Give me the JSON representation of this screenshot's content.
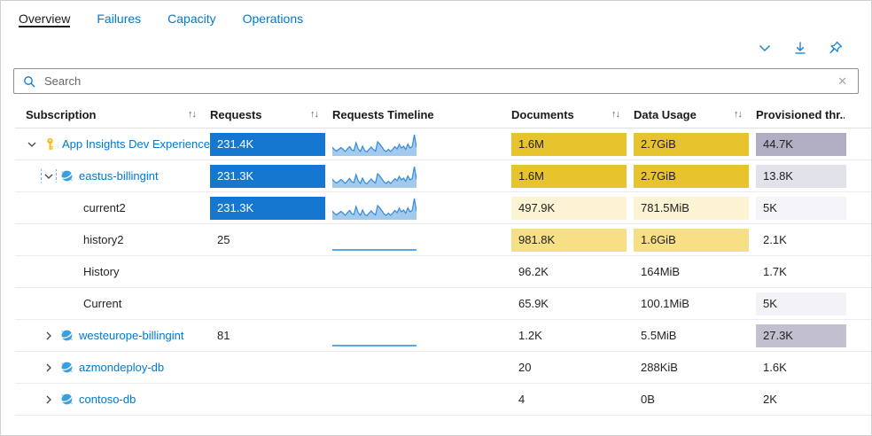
{
  "tabs": [
    {
      "label": "Overview",
      "active": true
    },
    {
      "label": "Failures",
      "active": false
    },
    {
      "label": "Capacity",
      "active": false
    },
    {
      "label": "Operations",
      "active": false
    }
  ],
  "toolbar": {
    "icons": [
      "collapse-chevron",
      "download",
      "pin"
    ]
  },
  "search": {
    "placeholder": "Search",
    "value": "",
    "clear_glyph": "✕"
  },
  "table": {
    "sort_glyph": "↑↓",
    "columns": [
      {
        "label": "Subscription",
        "sortable": true
      },
      {
        "label": "Requests",
        "sortable": true
      },
      {
        "label": "Requests Timeline",
        "sortable": false
      },
      {
        "label": "Documents",
        "sortable": true
      },
      {
        "label": "Data Usage",
        "sortable": true
      },
      {
        "label": "Provisioned thr...",
        "sortable": false
      }
    ],
    "rows": [
      {
        "label": "App Insights Dev Experience",
        "level": 0,
        "chevron": "down",
        "focus": false,
        "icon": "key",
        "link": true,
        "requests": {
          "text": "231.4K",
          "bar": true
        },
        "timeline": "spark",
        "documents": {
          "text": "1.6M",
          "bg": "#e7c32e"
        },
        "dataUsage": {
          "text": "2.7GiB",
          "bg": "#e7c32e"
        },
        "provisioned": {
          "text": "44.7K",
          "bg": "#b1aec3"
        }
      },
      {
        "label": "eastus-billingint",
        "level": 1,
        "chevron": "down",
        "focus": true,
        "icon": "cosmos",
        "link": true,
        "requests": {
          "text": "231.3K",
          "bar": true
        },
        "timeline": "spark",
        "documents": {
          "text": "1.6M",
          "bg": "#e7c32e"
        },
        "dataUsage": {
          "text": "2.7GiB",
          "bg": "#e7c32e"
        },
        "provisioned": {
          "text": "13.8K",
          "bg": "#e2e2ea"
        }
      },
      {
        "label": "current2",
        "level": 2,
        "chevron": null,
        "focus": false,
        "icon": null,
        "link": false,
        "requests": {
          "text": "231.3K",
          "bar": true
        },
        "timeline": "spark",
        "documents": {
          "text": "497.9K",
          "bg": "#fcf3d3"
        },
        "dataUsage": {
          "text": "781.5MiB",
          "bg": "#fcf3d3"
        },
        "provisioned": {
          "text": "5K",
          "bg": "#f5f5f9"
        }
      },
      {
        "label": "history2",
        "level": 2,
        "chevron": null,
        "focus": false,
        "icon": null,
        "link": false,
        "requests": {
          "text": "25",
          "bar": false
        },
        "timeline": "flat",
        "documents": {
          "text": "981.8K",
          "bg": "#f6df85"
        },
        "dataUsage": {
          "text": "1.6GiB",
          "bg": "#f6df85"
        },
        "provisioned": {
          "text": "2.1K",
          "bg": null
        }
      },
      {
        "label": "History",
        "level": 2,
        "chevron": null,
        "focus": false,
        "icon": null,
        "link": false,
        "requests": {
          "text": "",
          "bar": false
        },
        "timeline": "none",
        "documents": {
          "text": "96.2K",
          "bg": null
        },
        "dataUsage": {
          "text": "164MiB",
          "bg": null
        },
        "provisioned": {
          "text": "1.7K",
          "bg": null
        }
      },
      {
        "label": "Current",
        "level": 2,
        "chevron": null,
        "focus": false,
        "icon": null,
        "link": false,
        "requests": {
          "text": "",
          "bar": false
        },
        "timeline": "none",
        "documents": {
          "text": "65.9K",
          "bg": null
        },
        "dataUsage": {
          "text": "100.1MiB",
          "bg": null
        },
        "provisioned": {
          "text": "5K",
          "bg": "#f3f3f7"
        }
      },
      {
        "label": "westeurope-billingint",
        "level": 1,
        "chevron": "right",
        "focus": false,
        "icon": "cosmos",
        "link": true,
        "requests": {
          "text": "81",
          "bar": false
        },
        "timeline": "flat",
        "documents": {
          "text": "1.2K",
          "bg": null
        },
        "dataUsage": {
          "text": "5.5MiB",
          "bg": null
        },
        "provisioned": {
          "text": "27.3K",
          "bg": "#c2c0d0"
        }
      },
      {
        "label": "azmondeploy-db",
        "level": 1,
        "chevron": "right",
        "focus": false,
        "icon": "cosmos",
        "link": true,
        "requests": {
          "text": "",
          "bar": false
        },
        "timeline": "none",
        "documents": {
          "text": "20",
          "bg": null
        },
        "dataUsage": {
          "text": "288KiB",
          "bg": null
        },
        "provisioned": {
          "text": "1.6K",
          "bg": null
        }
      },
      {
        "label": "contoso-db",
        "level": 1,
        "chevron": "right",
        "focus": false,
        "icon": "cosmos",
        "link": true,
        "requests": {
          "text": "",
          "bar": false
        },
        "timeline": "none",
        "documents": {
          "text": "4",
          "bg": null
        },
        "dataUsage": {
          "text": "0B",
          "bg": null
        },
        "provisioned": {
          "text": "2K",
          "bg": null
        }
      }
    ]
  },
  "chart_data": {
    "type": "area",
    "title": "Requests Timeline sparkline",
    "series": [
      {
        "name": "requests-sparkline",
        "values": [
          32,
          20,
          14,
          22,
          30,
          22,
          12,
          24,
          34,
          20,
          16,
          52,
          24,
          12,
          36,
          16,
          10,
          22,
          32,
          22,
          14,
          56,
          46,
          32,
          18,
          12,
          22,
          12,
          22,
          34,
          24,
          44,
          28,
          36,
          22,
          46,
          28,
          34,
          88,
          30
        ]
      }
    ],
    "applies_to_rows": [
      0,
      1,
      2
    ],
    "flat_rows": [
      3,
      6
    ],
    "legend": false,
    "grid": false
  },
  "colors": {
    "accent_blue": "#0078d4",
    "requests_bar": "#1677d0",
    "gold_full": "#e7c32e",
    "yellow_pale": "#fcf3d3",
    "yellow_mid": "#f6df85",
    "prov_dark": "#b1aec3",
    "spark_fill": "#a3c9ec",
    "spark_stroke": "#2f8be0",
    "flat_line": "#5ba7e0"
  }
}
